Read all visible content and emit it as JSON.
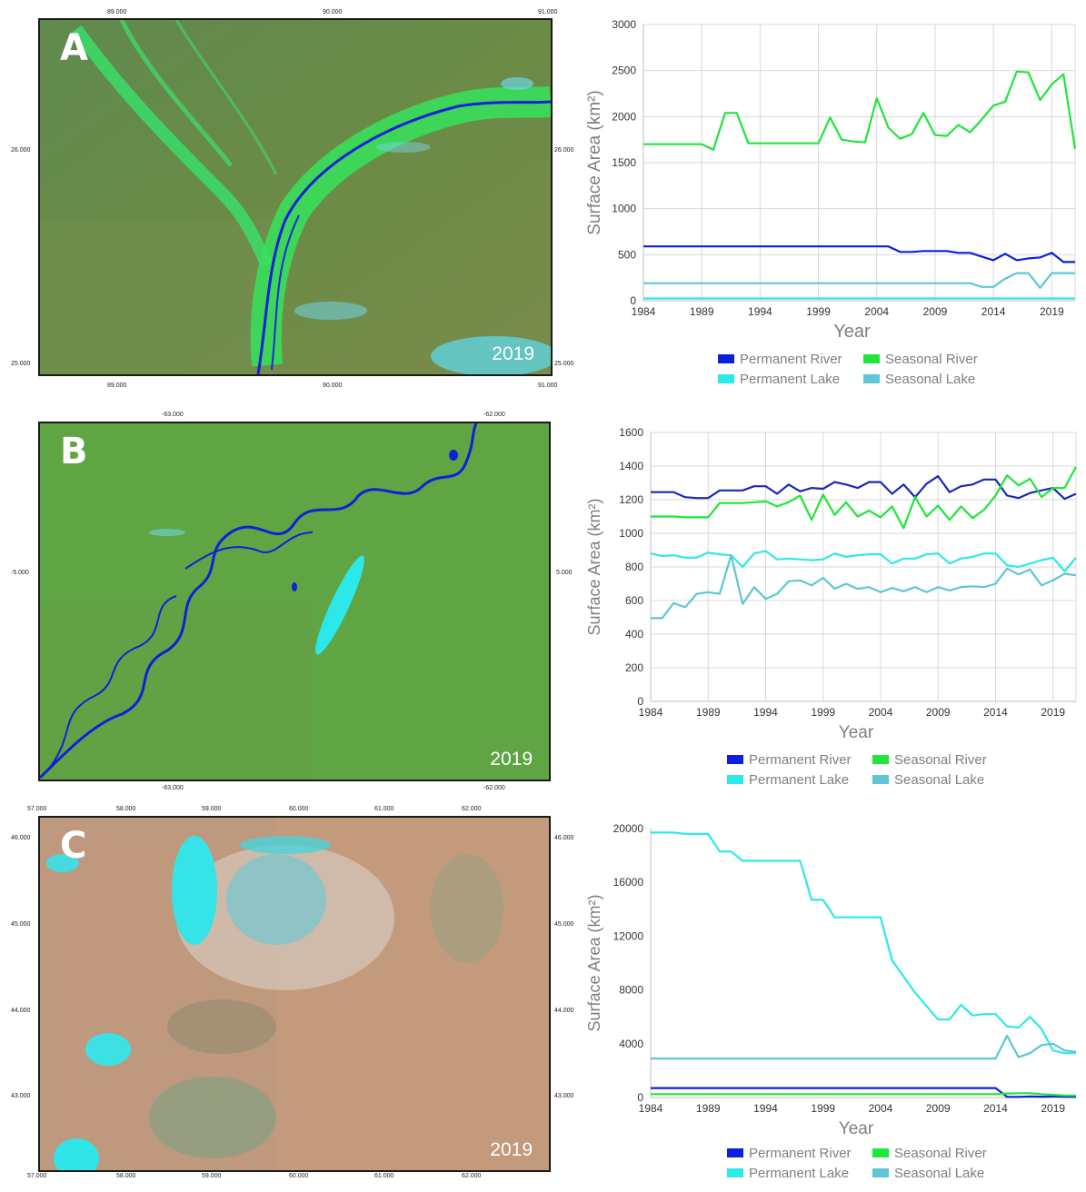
{
  "panels": [
    {
      "letter": "A",
      "year_tag": "2019",
      "map": {
        "top_ticks": [
          "89.000",
          "90.000",
          "91.000"
        ],
        "bottom_ticks": [
          "89.000",
          "90.000",
          "91.000"
        ],
        "left_ticks": [
          "26.000",
          "25.000"
        ],
        "right_ticks": [
          "26.000",
          "25.000"
        ]
      }
    },
    {
      "letter": "B",
      "year_tag": "2019",
      "map": {
        "top_ticks": [
          "-63.000",
          "-62.000"
        ],
        "bottom_ticks": [
          "-63.000",
          "-62.000"
        ],
        "left_ticks": [
          "-5.000"
        ],
        "right_ticks": [
          "5.000"
        ]
      }
    },
    {
      "letter": "C",
      "year_tag": "2019",
      "map": {
        "top_ticks": [
          "57.000",
          "58.000",
          "59.000",
          "60.000",
          "61.000",
          "62.000"
        ],
        "bottom_ticks": [
          "57.000",
          "58.000",
          "59.000",
          "60.000",
          "61.000",
          "62.000"
        ],
        "left_ticks": [
          "46.000",
          "45.000",
          "44.000",
          "43.000"
        ],
        "right_ticks": [
          "46.000",
          "45.000",
          "44.000",
          "43.000"
        ]
      }
    }
  ],
  "legend": {
    "entries": [
      {
        "name": "Permanent River",
        "color": "#0b1fe0"
      },
      {
        "name": "Seasonal River",
        "color": "#1fe63a"
      },
      {
        "name": "Permanent Lake",
        "color": "#2ee8e8"
      },
      {
        "name": "Seasonal Lake",
        "color": "#5ec6d4"
      }
    ]
  },
  "chart_data": [
    {
      "type": "line",
      "xlabel": "Year",
      "ylabel": "Surface Area (km²)",
      "ylim": [
        0,
        3000
      ],
      "yticks": [
        0,
        500,
        1000,
        1500,
        2000,
        2500,
        3000
      ],
      "xlim": [
        1984,
        2021
      ],
      "xticks": [
        1984,
        1989,
        1994,
        1999,
        2004,
        2009,
        2014,
        2019
      ],
      "grid": true,
      "legend_position": "bottom",
      "series": [
        {
          "name": "Permanent River",
          "color": "#0b1fe0",
          "x": [
            1984,
            2005,
            2006,
            2007,
            2008,
            2009,
            2010,
            2011,
            2012,
            2013,
            2014,
            2015,
            2016,
            2017,
            2018,
            2019,
            2020,
            2021
          ],
          "y": [
            590,
            590,
            530,
            530,
            540,
            540,
            540,
            520,
            520,
            480,
            440,
            510,
            440,
            460,
            470,
            520,
            420,
            420
          ]
        },
        {
          "name": "Seasonal River",
          "color": "#1fe63a",
          "x": [
            1984,
            1989,
            1990,
            1991,
            1992,
            1993,
            1999,
            2000,
            2001,
            2002,
            2003,
            2004,
            2005,
            2006,
            2007,
            2008,
            2009,
            2010,
            2011,
            2012,
            2013,
            2014,
            2015,
            2016,
            2017,
            2018,
            2019,
            2020,
            2021
          ],
          "y": [
            1700,
            1700,
            1640,
            2040,
            2040,
            1710,
            1710,
            1990,
            1750,
            1730,
            1720,
            2200,
            1880,
            1760,
            1810,
            2040,
            1800,
            1790,
            1910,
            1830,
            1970,
            2120,
            2160,
            2490,
            2480,
            2180,
            2350,
            2460,
            1650
          ]
        },
        {
          "name": "Permanent Lake",
          "color": "#2ee8e8",
          "x": [
            1984,
            2021
          ],
          "y": [
            25,
            25
          ]
        },
        {
          "name": "Seasonal Lake",
          "color": "#5ec6d4",
          "x": [
            1984,
            2012,
            2013,
            2014,
            2015,
            2016,
            2017,
            2018,
            2019,
            2020,
            2021
          ],
          "y": [
            190,
            190,
            150,
            150,
            240,
            300,
            300,
            140,
            300,
            300,
            300
          ]
        }
      ]
    },
    {
      "type": "line",
      "xlabel": "Year",
      "ylabel": "Surface Area (km²)",
      "ylim": [
        0,
        1600
      ],
      "yticks": [
        0,
        200,
        400,
        600,
        800,
        1000,
        1200,
        1400,
        1600
      ],
      "xlim": [
        1984,
        2021
      ],
      "xticks": [
        1984,
        1989,
        1994,
        1999,
        2004,
        2009,
        2014,
        2019
      ],
      "grid": true,
      "legend_position": "bottom",
      "series": [
        {
          "name": "Permanent River",
          "color": "#1a28b8",
          "x": [
            1984,
            1985,
            1986,
            1987,
            1988,
            1989,
            1990,
            1991,
            1992,
            1993,
            1994,
            1995,
            1996,
            1997,
            1998,
            1999,
            2000,
            2001,
            2002,
            2003,
            2004,
            2005,
            2006,
            2007,
            2008,
            2009,
            2010,
            2011,
            2012,
            2013,
            2014,
            2015,
            2016,
            2017,
            2018,
            2019,
            2020,
            2021
          ],
          "y": [
            1245,
            1245,
            1245,
            1215,
            1210,
            1210,
            1255,
            1255,
            1255,
            1280,
            1280,
            1235,
            1290,
            1250,
            1270,
            1265,
            1305,
            1290,
            1270,
            1305,
            1305,
            1235,
            1290,
            1215,
            1295,
            1340,
            1245,
            1280,
            1290,
            1320,
            1320,
            1225,
            1210,
            1240,
            1255,
            1270,
            1205,
            1235
          ]
        },
        {
          "name": "Seasonal River",
          "color": "#1fe63a",
          "x": [
            1984,
            1985,
            1986,
            1987,
            1988,
            1989,
            1990,
            1991,
            1992,
            1993,
            1994,
            1995,
            1996,
            1997,
            1998,
            1999,
            2000,
            2001,
            2002,
            2003,
            2004,
            2005,
            2006,
            2007,
            2008,
            2009,
            2010,
            2011,
            2012,
            2013,
            2014,
            2015,
            2016,
            2017,
            2018,
            2019,
            2020,
            2021
          ],
          "y": [
            1100,
            1100,
            1100,
            1095,
            1095,
            1095,
            1180,
            1180,
            1180,
            1185,
            1190,
            1160,
            1185,
            1225,
            1080,
            1230,
            1110,
            1185,
            1100,
            1135,
            1095,
            1160,
            1030,
            1215,
            1100,
            1165,
            1080,
            1160,
            1090,
            1140,
            1225,
            1345,
            1285,
            1325,
            1215,
            1270,
            1270,
            1395
          ]
        },
        {
          "name": "Permanent Lake",
          "color": "#2ee8e8",
          "x": [
            1984,
            1985,
            1986,
            1987,
            1988,
            1989,
            1990,
            1991,
            1992,
            1993,
            1994,
            1995,
            1996,
            1997,
            1998,
            1999,
            2000,
            2001,
            2002,
            2003,
            2004,
            2005,
            2006,
            2007,
            2008,
            2009,
            2010,
            2011,
            2012,
            2013,
            2014,
            2015,
            2016,
            2017,
            2018,
            2019,
            2020,
            2021
          ],
          "y": [
            880,
            865,
            870,
            855,
            855,
            885,
            875,
            870,
            800,
            880,
            895,
            845,
            850,
            845,
            840,
            845,
            880,
            860,
            870,
            875,
            875,
            820,
            850,
            850,
            875,
            880,
            820,
            850,
            860,
            880,
            880,
            810,
            800,
            820,
            840,
            855,
            775,
            855
          ]
        },
        {
          "name": "Seasonal Lake",
          "color": "#5ec6d4",
          "x": [
            1984,
            1985,
            1986,
            1987,
            1988,
            1989,
            1990,
            1991,
            1992,
            1993,
            1994,
            1995,
            1996,
            1997,
            1998,
            1999,
            2000,
            2001,
            2002,
            2003,
            2004,
            2005,
            2006,
            2007,
            2008,
            2009,
            2010,
            2011,
            2012,
            2013,
            2014,
            2015,
            2016,
            2017,
            2018,
            2019,
            2020,
            2021
          ],
          "y": [
            495,
            495,
            585,
            560,
            640,
            650,
            640,
            870,
            580,
            680,
            610,
            640,
            715,
            720,
            690,
            735,
            670,
            700,
            670,
            680,
            650,
            675,
            655,
            680,
            650,
            680,
            660,
            680,
            685,
            680,
            700,
            790,
            755,
            785,
            690,
            720,
            760,
            750
          ]
        }
      ]
    },
    {
      "type": "line",
      "xlabel": "Year",
      "ylabel": "Surface Area (km²)",
      "ylim": [
        0,
        20000
      ],
      "yticks": [
        0,
        4000,
        8000,
        12000,
        16000,
        20000
      ],
      "xlim": [
        1984,
        2021
      ],
      "xticks": [
        1984,
        1989,
        1994,
        1999,
        2004,
        2009,
        2014,
        2019
      ],
      "grid": false,
      "legend_position": "bottom",
      "series": [
        {
          "name": "Permanent River",
          "color": "#0b1fe0",
          "x": [
            1984,
            2014,
            2015,
            2016,
            2017,
            2018,
            2019,
            2020,
            2021
          ],
          "y": [
            700,
            700,
            50,
            50,
            80,
            60,
            80,
            60,
            60
          ]
        },
        {
          "name": "Seasonal River",
          "color": "#1fe63a",
          "x": [
            1984,
            2014,
            2015,
            2016,
            2017,
            2018,
            2019,
            2020,
            2021
          ],
          "y": [
            250,
            250,
            300,
            320,
            320,
            250,
            200,
            150,
            150
          ]
        },
        {
          "name": "Permanent Lake",
          "color": "#2ee8e8",
          "x": [
            1984,
            1986,
            1987,
            1988,
            1989,
            1990,
            1991,
            1992,
            1993,
            1997,
            1998,
            1999,
            2000,
            2004,
            2005,
            2006,
            2007,
            2008,
            2009,
            2010,
            2011,
            2012,
            2013,
            2014,
            2015,
            2016,
            2017,
            2018,
            2019,
            2020,
            2021
          ],
          "y": [
            19700,
            19700,
            19600,
            19600,
            19600,
            18300,
            18300,
            17600,
            17600,
            17600,
            14700,
            14700,
            13400,
            13400,
            10200,
            9000,
            7800,
            6800,
            5800,
            5800,
            6900,
            6100,
            6200,
            6200,
            5300,
            5200,
            6000,
            5100,
            3500,
            3300,
            3300
          ]
        },
        {
          "name": "Seasonal Lake",
          "color": "#5ec6d4",
          "x": [
            1984,
            2013,
            2014,
            2015,
            2016,
            2017,
            2018,
            2019,
            2020,
            2021
          ],
          "y": [
            2900,
            2900,
            2900,
            4600,
            3000,
            3300,
            3900,
            4000,
            3500,
            3400
          ]
        }
      ]
    }
  ]
}
